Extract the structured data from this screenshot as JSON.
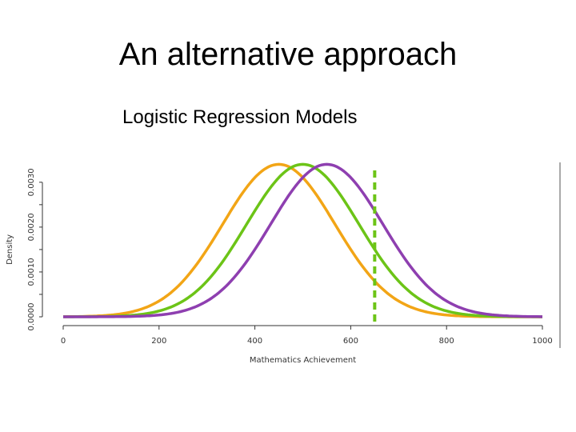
{
  "title": "An alternative approach",
  "subtitle": "Logistic Regression Models",
  "chart_data": {
    "type": "line",
    "xlabel": "Mathematics Achievement",
    "ylabel": "Density",
    "xlim": [
      0,
      1000
    ],
    "ylim": [
      0,
      0.0033
    ],
    "x_ticks": [
      "0",
      "200",
      "400",
      "600",
      "800",
      "1000"
    ],
    "y_ticks": [
      "0.0000",
      "0.0010",
      "0.0020",
      "0.0030"
    ],
    "grid": false,
    "series": [
      {
        "color": "#f2a516",
        "x": [
          0,
          100,
          200,
          300,
          350,
          400,
          450,
          500,
          550,
          600,
          700,
          800,
          900,
          1000
        ],
        "y": [
          0.0,
          0.0001,
          0.0004,
          0.0014,
          0.0023,
          0.0031,
          0.0034,
          0.0031,
          0.0023,
          0.0014,
          0.0004,
          0.0001,
          0.0,
          0.0
        ]
      },
      {
        "color": "#6cc417",
        "x": [
          0,
          100,
          200,
          300,
          400,
          450,
          500,
          550,
          600,
          700,
          800,
          900,
          1000
        ],
        "y": [
          0.0,
          0.0,
          0.0002,
          0.0008,
          0.0024,
          0.0031,
          0.0034,
          0.0031,
          0.0024,
          0.0008,
          0.0002,
          0.0,
          0.0
        ]
      },
      {
        "color": "#8e3fb0",
        "x": [
          0,
          100,
          200,
          300,
          400,
          500,
          550,
          600,
          700,
          800,
          900,
          1000
        ],
        "y": [
          0.0,
          0.0,
          0.0001,
          0.0004,
          0.0014,
          0.0031,
          0.0034,
          0.0031,
          0.0014,
          0.0004,
          0.0001,
          0.0
        ]
      }
    ],
    "reference_line": {
      "x": 650,
      "color": "#6cc417",
      "style": "dashed"
    }
  }
}
